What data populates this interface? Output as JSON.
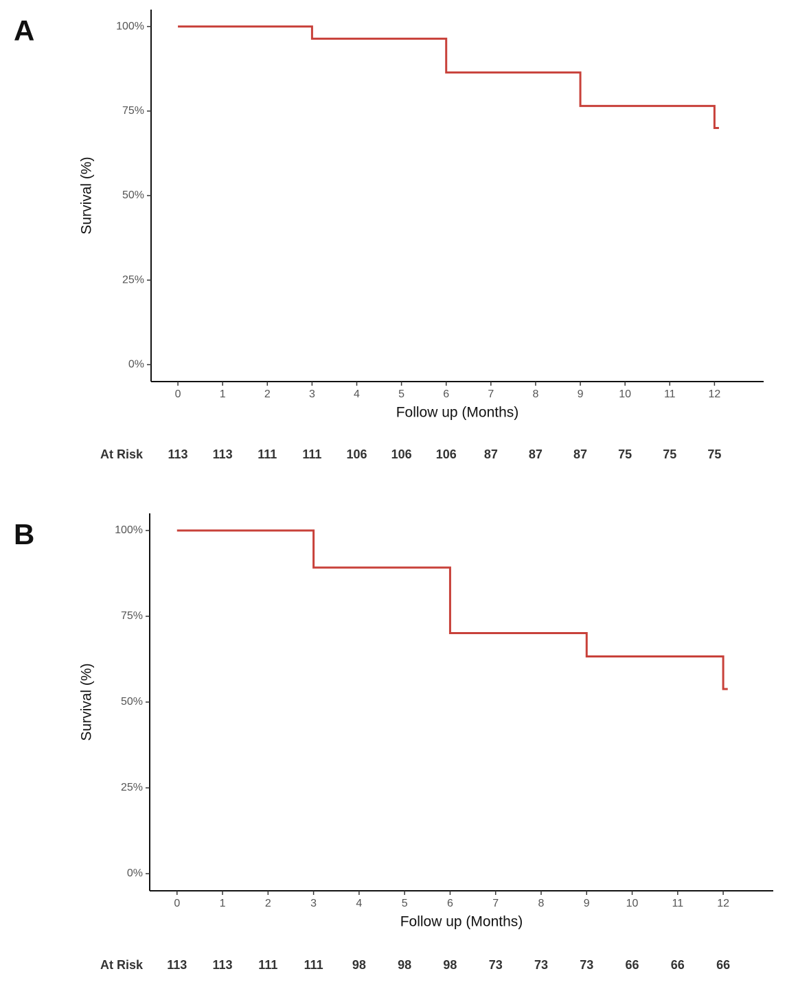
{
  "chart_data": [
    {
      "type": "line",
      "panel": "A",
      "ylabel": "Survival (%)",
      "xlabel": "Follow up (Months)",
      "color": "#c8413a",
      "x": [
        0,
        3,
        3,
        6,
        6,
        9,
        9,
        12,
        12,
        12.1
      ],
      "values": [
        100,
        100,
        96.4,
        96.4,
        86.4,
        86.4,
        76.5,
        76.5,
        70,
        70
      ],
      "xlim": [
        -0.6,
        13.1
      ],
      "ylim": [
        -5,
        105
      ],
      "xticks": [
        0,
        1,
        2,
        3,
        4,
        5,
        6,
        7,
        8,
        9,
        10,
        11,
        12
      ],
      "yticks": [
        {
          "value": 0,
          "label": "0%"
        },
        {
          "value": 25,
          "label": "25%"
        },
        {
          "value": 50,
          "label": "50%"
        },
        {
          "value": 75,
          "label": "75%"
        },
        {
          "value": 100,
          "label": "100%"
        }
      ],
      "risk_table": {
        "label": "At Risk",
        "values": [
          113,
          113,
          111,
          111,
          106,
          106,
          106,
          87,
          87,
          87,
          75,
          75,
          75
        ]
      }
    },
    {
      "type": "line",
      "panel": "B",
      "ylabel": "Survival (%)",
      "xlabel": "Follow up (Months)",
      "color": "#c8413a",
      "x": [
        0,
        3,
        3,
        6,
        6,
        9,
        9,
        12,
        12,
        12.1
      ],
      "values": [
        100,
        100,
        89.2,
        89.2,
        70.1,
        70.1,
        63.3,
        63.3,
        53.8,
        53.8
      ],
      "xlim": [
        -0.6,
        13.1
      ],
      "ylim": [
        -5,
        105
      ],
      "xticks": [
        0,
        1,
        2,
        3,
        4,
        5,
        6,
        7,
        8,
        9,
        10,
        11,
        12
      ],
      "yticks": [
        {
          "value": 0,
          "label": "0%"
        },
        {
          "value": 25,
          "label": "25%"
        },
        {
          "value": 50,
          "label": "50%"
        },
        {
          "value": 75,
          "label": "75%"
        },
        {
          "value": 100,
          "label": "100%"
        }
      ],
      "risk_table": {
        "label": "At Risk",
        "values": [
          113,
          113,
          111,
          111,
          98,
          98,
          98,
          73,
          73,
          73,
          66,
          66,
          66
        ]
      }
    }
  ]
}
